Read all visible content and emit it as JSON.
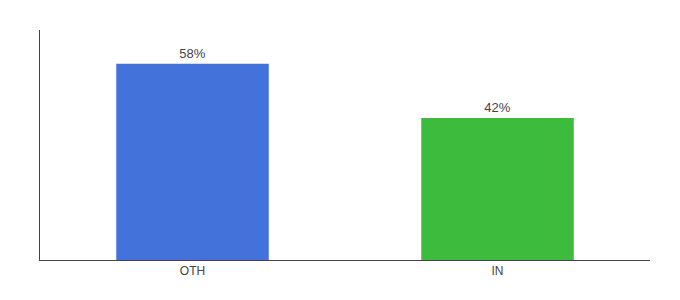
{
  "chart_data": {
    "type": "bar",
    "categories": [
      "OTH",
      "IN"
    ],
    "values": [
      58,
      42
    ],
    "value_labels": [
      "58%",
      "42%"
    ],
    "data_labels": true,
    "colors": [
      "#4472db",
      "#3dbb3d"
    ],
    "ylim": [
      0,
      68
    ],
    "grid": false,
    "tick_labels": "x"
  }
}
